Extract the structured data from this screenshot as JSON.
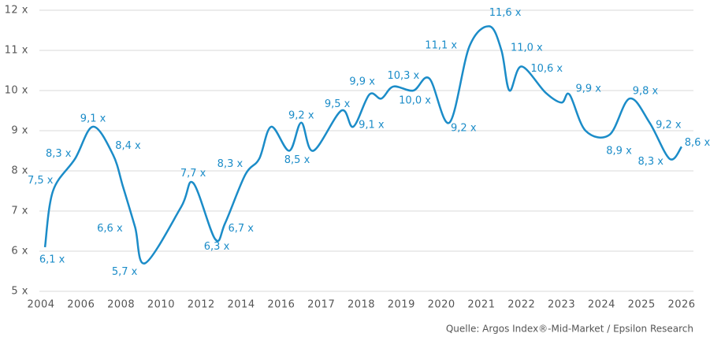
{
  "chart_data": {
    "type": "line",
    "x": [
      2004.2,
      2004.6,
      2005.7,
      2006.6,
      2007.6,
      2008.1,
      2008.7,
      2009.2,
      2011.0,
      2011.6,
      2012.7,
      2013.2,
      2014.2,
      2014.9,
      2015.5,
      2016.2,
      2016.5,
      2016.8,
      2017.5,
      2017.8,
      2018.2,
      2018.5,
      2018.8,
      2019.3,
      2019.7,
      2020.2,
      2020.7,
      2021.2,
      2021.5,
      2021.7,
      2022.0,
      2022.6,
      2023.0,
      2023.2,
      2023.6,
      2024.2,
      2024.7,
      2025.2,
      2025.7,
      2026.0
    ],
    "series": [
      {
        "color": "#1b8cc8",
        "values": [
          6.1,
          7.5,
          8.3,
          9.1,
          8.4,
          7.6,
          6.6,
          5.7,
          7.1,
          7.7,
          6.3,
          6.7,
          7.9,
          8.3,
          9.1,
          8.5,
          9.2,
          8.5,
          9.5,
          9.1,
          9.9,
          9.8,
          10.1,
          10.0,
          10.3,
          9.2,
          11.1,
          11.6,
          11.0,
          10.0,
          10.6,
          9.95,
          9.7,
          9.9,
          9.0,
          8.9,
          9.8,
          9.2,
          8.3,
          8.6
        ],
        "value_labels": [
          "6,1 x",
          "7,5 x",
          "8,3 x",
          "9,1 x",
          "8,4 x",
          null,
          "6,6 x",
          "5,7 x",
          null,
          "7,7 x",
          "6,3 x",
          "6,7 x",
          null,
          "8,3 x",
          null,
          "8,5 x",
          "9,2 x",
          null,
          "9,5 x",
          "9,1 x",
          "9,9 x",
          null,
          null,
          "10,0 x",
          "10,3 x",
          "9,2 x",
          "11,1 x",
          "11,6 x",
          "11,0 x",
          null,
          "10,6 x",
          null,
          null,
          "9,9 x",
          null,
          "8,9 x",
          "9,8 x",
          "9,2 x",
          "8,3 x",
          "8,6 x"
        ]
      }
    ],
    "xlim": [
      2004,
      2026
    ],
    "xticks": [
      2004,
      2006,
      2008,
      2010,
      2012,
      2014,
      2016,
      2017,
      2018,
      2019,
      2020,
      2021,
      2022,
      2023,
      2024,
      2025,
      2026
    ],
    "ylim": [
      5,
      12
    ],
    "yticks": [
      {
        "value": 5,
        "label": "5 x"
      },
      {
        "value": 6,
        "label": "6 x"
      },
      {
        "value": 7,
        "label": "7 x"
      },
      {
        "value": 8,
        "label": "8 x"
      },
      {
        "value": 9,
        "label": "9 x"
      },
      {
        "value": 10,
        "label": "10 x"
      },
      {
        "value": 11,
        "label": "11 x"
      },
      {
        "value": 12,
        "label": "12 x"
      }
    ],
    "grid": true,
    "source": "Quelle: Argos Index®-Mid-Market / Epsilon Research"
  }
}
